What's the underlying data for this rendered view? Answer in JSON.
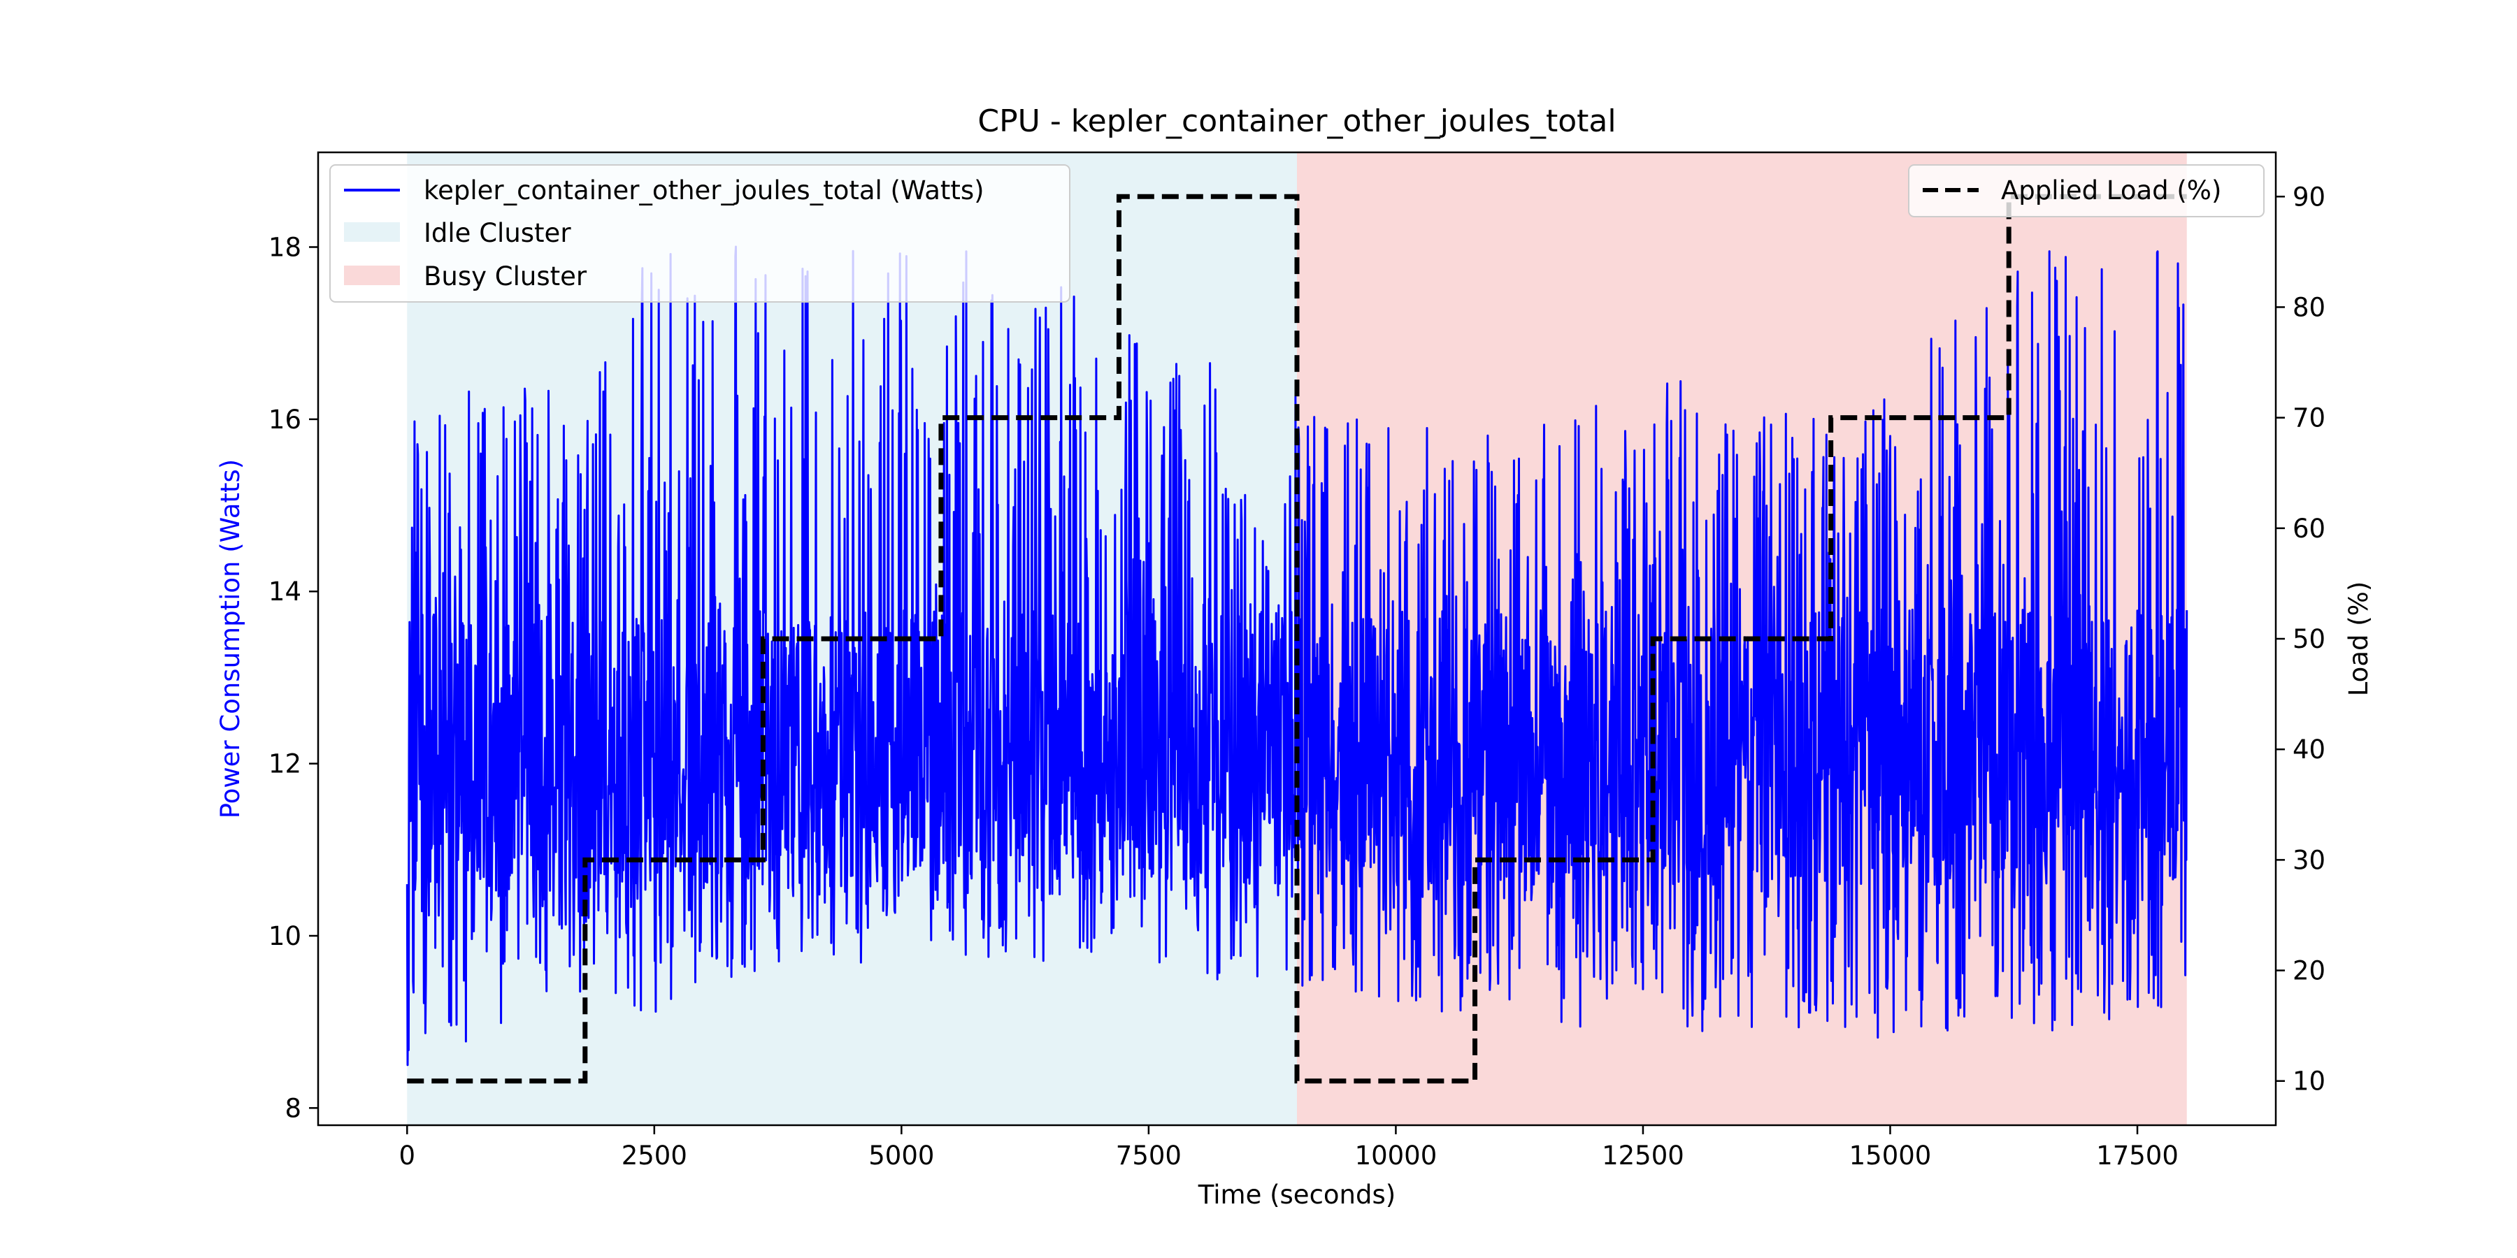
{
  "chart_data": {
    "type": "line",
    "title": "CPU - kepler_container_other_joules_total",
    "xlabel": "Time (seconds)",
    "ylabel_left": "Power Consumption (Watts)",
    "ylabel_right": "Load (%)",
    "xlim": [
      -900,
      18900
    ],
    "ylim_left": [
      7.8,
      19.1
    ],
    "ylim_right": [
      6,
      94
    ],
    "x_ticks": [
      0,
      2500,
      5000,
      7500,
      10000,
      12500,
      15000,
      17500
    ],
    "x_tick_labels": [
      "0",
      "2500",
      "5000",
      "7500",
      "10000",
      "12500",
      "15000",
      "17500"
    ],
    "y_left_ticks": [
      8,
      10,
      12,
      14,
      16,
      18
    ],
    "y_left_tick_labels": [
      "8",
      "10",
      "12",
      "14",
      "16",
      "18"
    ],
    "y_right_ticks": [
      10,
      20,
      30,
      40,
      50,
      60,
      70,
      80,
      90
    ],
    "y_right_tick_labels": [
      "10",
      "20",
      "30",
      "40",
      "50",
      "60",
      "70",
      "80",
      "90"
    ],
    "regions": [
      {
        "name": "Idle Cluster",
        "x_start": 0,
        "x_end": 9000,
        "color": "#add8e6",
        "alpha": 0.3
      },
      {
        "name": "Busy Cluster",
        "x_start": 9000,
        "x_end": 18000,
        "color": "#f08080",
        "alpha": 0.3
      }
    ],
    "series": [
      {
        "name": "kepler_container_other_joules_total (Watts)",
        "axis": "left",
        "color": "#0000ff",
        "style": "solid",
        "x_range": [
          0,
          18000
        ],
        "sample_interval": 5,
        "envelope_x": [
          0,
          1800,
          2700,
          3600,
          5400,
          7200,
          9000,
          10800,
          12600,
          14400,
          16200,
          18000
        ],
        "envelope_min": [
          8.5,
          9.3,
          9.0,
          9.6,
          9.7,
          9.6,
          9.4,
          9.0,
          8.9,
          8.7,
          8.8,
          9.2
        ],
        "envelope_max": [
          16.2,
          16.6,
          18.5,
          18.0,
          18.3,
          17.2,
          16.3,
          16.0,
          16.6,
          16.0,
          17.8,
          18.5
        ],
        "mean": 12.7
      },
      {
        "name": "Applied Load (%)",
        "axis": "right",
        "color": "#000000",
        "style": "dashed",
        "steps": [
          {
            "x_start": 0,
            "x_end": 1800,
            "value": 10
          },
          {
            "x_start": 1800,
            "x_end": 3600,
            "value": 30
          },
          {
            "x_start": 3600,
            "x_end": 5400,
            "value": 50
          },
          {
            "x_start": 5400,
            "x_end": 7200,
            "value": 70
          },
          {
            "x_start": 7200,
            "x_end": 9000,
            "value": 90
          },
          {
            "x_start": 9000,
            "x_end": 10800,
            "value": 10
          },
          {
            "x_start": 10800,
            "x_end": 12600,
            "value": 30
          },
          {
            "x_start": 12600,
            "x_end": 14400,
            "value": 50
          },
          {
            "x_start": 14400,
            "x_end": 16200,
            "value": 70
          },
          {
            "x_start": 16200,
            "x_end": 18000,
            "value": 90
          }
        ]
      }
    ],
    "legend_left": {
      "placement": "upper-left",
      "entries": [
        {
          "label": "kepler_container_other_joules_total (Watts)",
          "kind": "line",
          "color": "#0000ff"
        },
        {
          "label": "Idle Cluster",
          "kind": "patch",
          "color": "#add8e6"
        },
        {
          "label": "Busy Cluster",
          "kind": "patch",
          "color": "#f08080"
        }
      ]
    },
    "legend_right": {
      "placement": "upper-right",
      "entries": [
        {
          "label": "Applied Load (%)",
          "kind": "dashed-line",
          "color": "#000000"
        }
      ]
    }
  }
}
